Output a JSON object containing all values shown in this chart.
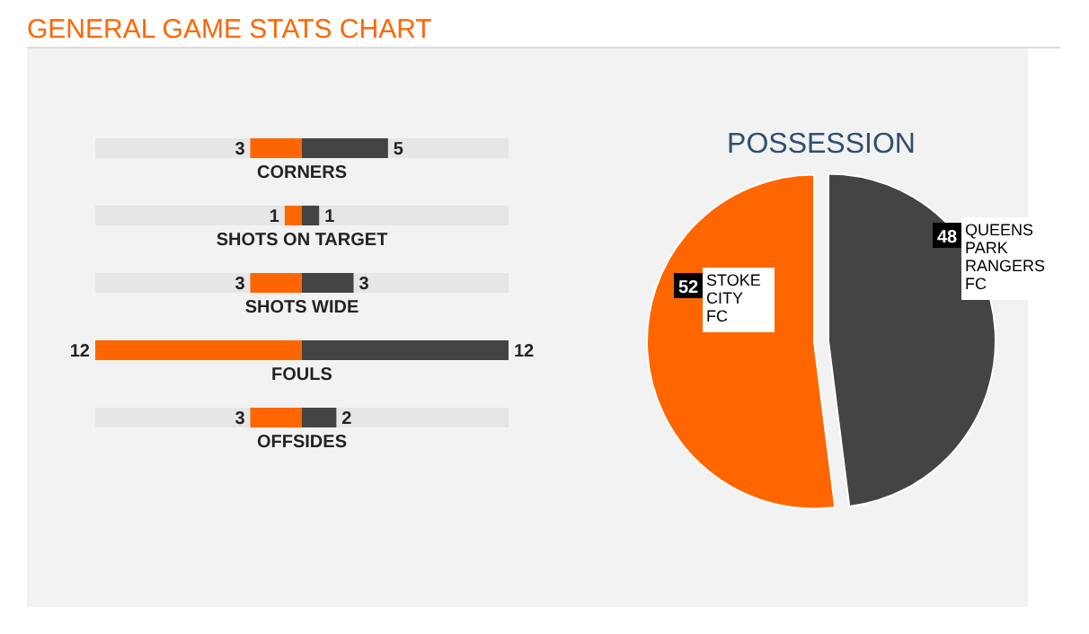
{
  "chart_data": [
    {
      "type": "bar",
      "title": "GENERAL GAME STATS CHART",
      "orientation": "horizontal",
      "categories": [
        "CORNERS",
        "SHOTS ON TARGET",
        "SHOTS WIDE",
        "FOULS",
        "OFFSIDES"
      ],
      "series": [
        {
          "color": "#ff6600",
          "values": [
            3,
            1,
            3,
            12,
            3
          ]
        }
      ],
      "data_labels": true
    },
    {
      "type": "bar",
      "orientation": "horizontal",
      "categories": [
        null,
        null,
        null,
        null,
        null
      ],
      "series": [
        {
          "color": "#444444",
          "values": [
            5,
            1,
            3,
            12,
            2
          ]
        }
      ],
      "data_labels": true
    },
    {
      "type": "pie",
      "title": "POSSESSION",
      "categories": [
        "STOKE CITY FC",
        "QUEENS PARK RANGERS FC"
      ],
      "values": [
        52,
        48
      ],
      "colors": [
        "#ff6600",
        "#444444"
      ],
      "data_labels": true
    }
  ]
}
